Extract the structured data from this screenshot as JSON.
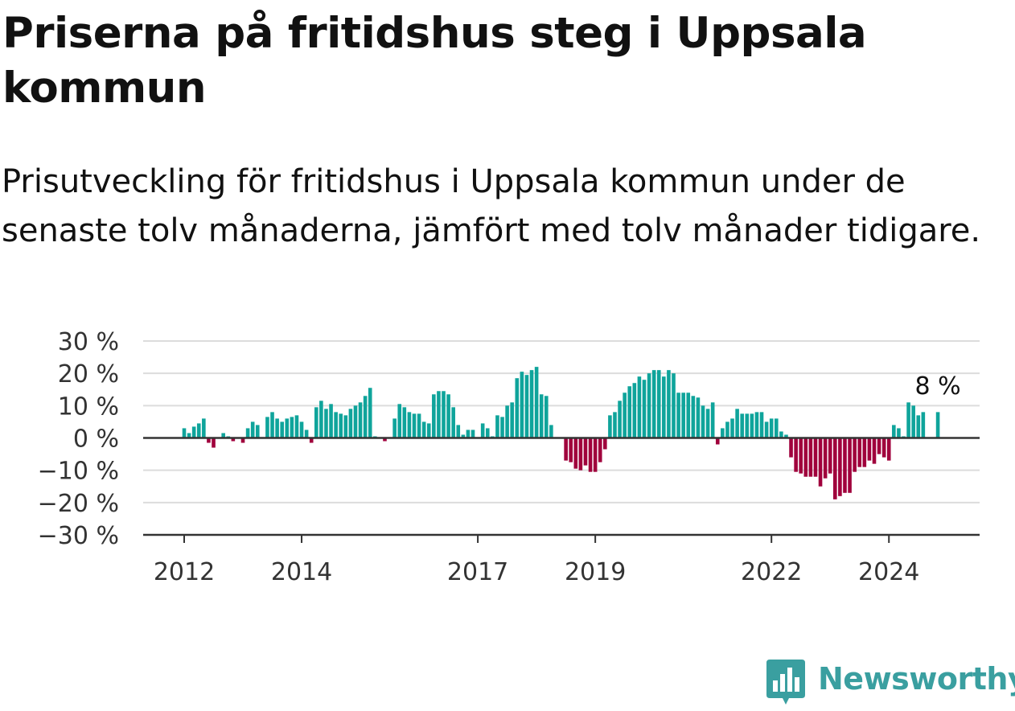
{
  "title": "Priserna på fritidshus steg i Uppsala kommun",
  "subtitle": "Prisutveckling för fritidshus i Uppsala kommun under de senaste tolv månaderna, jämfört med tolv månader tidigare.",
  "brand": {
    "name": "Newsworthy",
    "icon": "bar-chart-speech-bubble-icon"
  },
  "colors": {
    "positive": "#0fa49b",
    "negative": "#a0003c",
    "grid": "#dcdcdc",
    "axis": "#333333",
    "brand": "#3a9fa0"
  },
  "chart_data": {
    "type": "bar",
    "title": "Priserna på fritidshus steg i Uppsala kommun",
    "subtitle": "Prisutveckling för fritidshus i Uppsala kommun under de senaste tolv månaderna, jämfört med tolv månader tidigare.",
    "xlabel": "",
    "ylabel": "",
    "ylim": [
      -30,
      30
    ],
    "y_ticks": [
      {
        "value": 30,
        "label": "30 %"
      },
      {
        "value": 20,
        "label": "20 %"
      },
      {
        "value": 10,
        "label": "10 %"
      },
      {
        "value": 0,
        "label": "0 %"
      },
      {
        "value": -10,
        "label": "−10 %"
      },
      {
        "value": -20,
        "label": "−20 %"
      },
      {
        "value": -30,
        "label": "−30 %"
      }
    ],
    "x_ticks": [
      {
        "date": "2012-01",
        "label": "2012"
      },
      {
        "date": "2014-01",
        "label": "2014"
      },
      {
        "date": "2017-01",
        "label": "2017"
      },
      {
        "date": "2019-01",
        "label": "2019"
      },
      {
        "date": "2022-01",
        "label": "2022"
      },
      {
        "date": "2024-01",
        "label": "2024"
      }
    ],
    "grid": true,
    "annotation": {
      "date": "2024-11",
      "text": "8 %"
    },
    "series": [
      {
        "values": [
          {
            "date": "2012-01",
            "value": 3
          },
          {
            "date": "2012-02",
            "value": 1.5
          },
          {
            "date": "2012-03",
            "value": 3.5
          },
          {
            "date": "2012-04",
            "value": 4.5
          },
          {
            "date": "2012-05",
            "value": 6
          },
          {
            "date": "2012-06",
            "value": -1.5
          },
          {
            "date": "2012-07",
            "value": -3
          },
          {
            "date": "2012-09",
            "value": 1.5
          },
          {
            "date": "2012-10",
            "value": 0.5
          },
          {
            "date": "2012-11",
            "value": -1
          },
          {
            "date": "2013-01",
            "value": -1.5
          },
          {
            "date": "2013-02",
            "value": 3
          },
          {
            "date": "2013-03",
            "value": 5
          },
          {
            "date": "2013-04",
            "value": 4
          },
          {
            "date": "2013-06",
            "value": 6.5
          },
          {
            "date": "2013-07",
            "value": 8
          },
          {
            "date": "2013-08",
            "value": 6
          },
          {
            "date": "2013-09",
            "value": 5
          },
          {
            "date": "2013-10",
            "value": 6
          },
          {
            "date": "2013-11",
            "value": 6.5
          },
          {
            "date": "2013-12",
            "value": 7
          },
          {
            "date": "2014-01",
            "value": 5
          },
          {
            "date": "2014-02",
            "value": 2.5
          },
          {
            "date": "2014-03",
            "value": -1.5
          },
          {
            "date": "2014-04",
            "value": 9.5
          },
          {
            "date": "2014-05",
            "value": 11.5
          },
          {
            "date": "2014-06",
            "value": 9
          },
          {
            "date": "2014-07",
            "value": 10.5
          },
          {
            "date": "2014-08",
            "value": 8
          },
          {
            "date": "2014-09",
            "value": 7.5
          },
          {
            "date": "2014-10",
            "value": 7
          },
          {
            "date": "2014-11",
            "value": 9
          },
          {
            "date": "2014-12",
            "value": 10
          },
          {
            "date": "2015-01",
            "value": 11
          },
          {
            "date": "2015-02",
            "value": 13
          },
          {
            "date": "2015-03",
            "value": 15.5
          },
          {
            "date": "2015-04",
            "value": 0.5
          },
          {
            "date": "2015-06",
            "value": -1
          },
          {
            "date": "2015-08",
            "value": 6
          },
          {
            "date": "2015-09",
            "value": 10.5
          },
          {
            "date": "2015-10",
            "value": 9.5
          },
          {
            "date": "2015-11",
            "value": 8
          },
          {
            "date": "2015-12",
            "value": 7.5
          },
          {
            "date": "2016-01",
            "value": 7.5
          },
          {
            "date": "2016-02",
            "value": 5
          },
          {
            "date": "2016-03",
            "value": 4.5
          },
          {
            "date": "2016-04",
            "value": 13.5
          },
          {
            "date": "2016-05",
            "value": 14.5
          },
          {
            "date": "2016-06",
            "value": 14.5
          },
          {
            "date": "2016-07",
            "value": 13.5
          },
          {
            "date": "2016-08",
            "value": 9.5
          },
          {
            "date": "2016-09",
            "value": 4
          },
          {
            "date": "2016-10",
            "value": 1
          },
          {
            "date": "2016-11",
            "value": 2.5
          },
          {
            "date": "2016-12",
            "value": 2.5
          },
          {
            "date": "2017-02",
            "value": 4.5
          },
          {
            "date": "2017-03",
            "value": 3
          },
          {
            "date": "2017-04",
            "value": 0.5
          },
          {
            "date": "2017-05",
            "value": 7
          },
          {
            "date": "2017-06",
            "value": 6.5
          },
          {
            "date": "2017-07",
            "value": 10
          },
          {
            "date": "2017-08",
            "value": 11
          },
          {
            "date": "2017-09",
            "value": 18.5
          },
          {
            "date": "2017-10",
            "value": 20.5
          },
          {
            "date": "2017-11",
            "value": 19.5
          },
          {
            "date": "2017-12",
            "value": 21
          },
          {
            "date": "2018-01",
            "value": 22
          },
          {
            "date": "2018-02",
            "value": 13.5
          },
          {
            "date": "2018-03",
            "value": 13
          },
          {
            "date": "2018-04",
            "value": 4
          },
          {
            "date": "2018-07",
            "value": -7
          },
          {
            "date": "2018-08",
            "value": -7.5
          },
          {
            "date": "2018-09",
            "value": -9.5
          },
          {
            "date": "2018-10",
            "value": -10
          },
          {
            "date": "2018-11",
            "value": -8.5
          },
          {
            "date": "2018-12",
            "value": -10.5
          },
          {
            "date": "2019-01",
            "value": -10.5
          },
          {
            "date": "2019-02",
            "value": -7.5
          },
          {
            "date": "2019-03",
            "value": -3.5
          },
          {
            "date": "2019-04",
            "value": 7
          },
          {
            "date": "2019-05",
            "value": 8
          },
          {
            "date": "2019-06",
            "value": 11.5
          },
          {
            "date": "2019-07",
            "value": 14
          },
          {
            "date": "2019-08",
            "value": 16
          },
          {
            "date": "2019-09",
            "value": 17
          },
          {
            "date": "2019-10",
            "value": 19
          },
          {
            "date": "2019-11",
            "value": 18
          },
          {
            "date": "2019-12",
            "value": 20
          },
          {
            "date": "2020-01",
            "value": 21
          },
          {
            "date": "2020-02",
            "value": 21
          },
          {
            "date": "2020-03",
            "value": 19
          },
          {
            "date": "2020-04",
            "value": 21
          },
          {
            "date": "2020-05",
            "value": 20
          },
          {
            "date": "2020-06",
            "value": 14
          },
          {
            "date": "2020-07",
            "value": 14
          },
          {
            "date": "2020-08",
            "value": 14
          },
          {
            "date": "2020-09",
            "value": 13
          },
          {
            "date": "2020-10",
            "value": 12.5
          },
          {
            "date": "2020-11",
            "value": 10
          },
          {
            "date": "2020-12",
            "value": 9
          },
          {
            "date": "2021-01",
            "value": 11
          },
          {
            "date": "2021-02",
            "value": -2
          },
          {
            "date": "2021-03",
            "value": 3
          },
          {
            "date": "2021-04",
            "value": 5
          },
          {
            "date": "2021-05",
            "value": 6
          },
          {
            "date": "2021-06",
            "value": 9
          },
          {
            "date": "2021-07",
            "value": 7.5
          },
          {
            "date": "2021-08",
            "value": 7.5
          },
          {
            "date": "2021-09",
            "value": 7.5
          },
          {
            "date": "2021-10",
            "value": 8
          },
          {
            "date": "2021-11",
            "value": 8
          },
          {
            "date": "2021-12",
            "value": 5
          },
          {
            "date": "2022-01",
            "value": 6
          },
          {
            "date": "2022-02",
            "value": 6
          },
          {
            "date": "2022-03",
            "value": 2
          },
          {
            "date": "2022-04",
            "value": 1
          },
          {
            "date": "2022-05",
            "value": -6
          },
          {
            "date": "2022-06",
            "value": -10.5
          },
          {
            "date": "2022-07",
            "value": -11
          },
          {
            "date": "2022-08",
            "value": -12
          },
          {
            "date": "2022-09",
            "value": -12
          },
          {
            "date": "2022-10",
            "value": -12
          },
          {
            "date": "2022-11",
            "value": -15
          },
          {
            "date": "2022-12",
            "value": -12.5
          },
          {
            "date": "2023-01",
            "value": -11
          },
          {
            "date": "2023-02",
            "value": -19
          },
          {
            "date": "2023-03",
            "value": -18
          },
          {
            "date": "2023-04",
            "value": -17
          },
          {
            "date": "2023-05",
            "value": -17
          },
          {
            "date": "2023-06",
            "value": -10.5
          },
          {
            "date": "2023-07",
            "value": -9
          },
          {
            "date": "2023-08",
            "value": -9
          },
          {
            "date": "2023-09",
            "value": -7
          },
          {
            "date": "2023-10",
            "value": -8
          },
          {
            "date": "2023-11",
            "value": -5
          },
          {
            "date": "2023-12",
            "value": -6
          },
          {
            "date": "2024-01",
            "value": -7
          },
          {
            "date": "2024-02",
            "value": 4
          },
          {
            "date": "2024-03",
            "value": 3
          },
          {
            "date": "2024-04",
            "value": 0.5
          },
          {
            "date": "2024-05",
            "value": 11
          },
          {
            "date": "2024-06",
            "value": 10
          },
          {
            "date": "2024-07",
            "value": 7
          },
          {
            "date": "2024-08",
            "value": 8
          },
          {
            "date": "2024-09",
            "value": 0
          },
          {
            "date": "2024-10",
            "value": 0
          },
          {
            "date": "2024-11",
            "value": 8
          }
        ]
      }
    ]
  }
}
